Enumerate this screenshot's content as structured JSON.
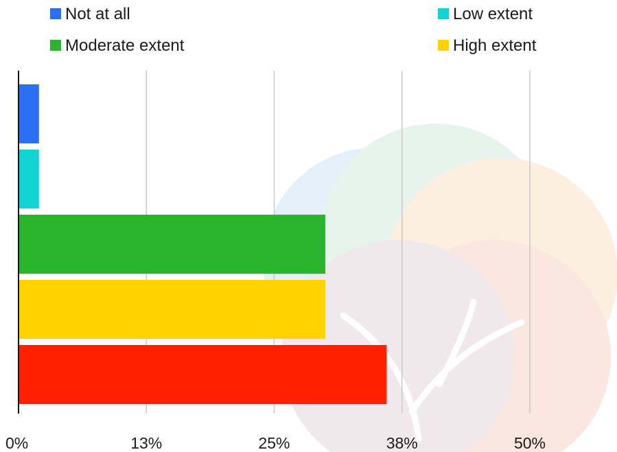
{
  "chart_data": {
    "type": "bar",
    "orientation": "horizontal",
    "title": "",
    "xlabel": "",
    "ylabel": "",
    "xlim": [
      0,
      50
    ],
    "x_tick_labels": [
      "0%",
      "13%",
      "25%",
      "38%",
      "50%"
    ],
    "grid": true,
    "legend_position": "top",
    "series": [
      {
        "name": "Not at all",
        "value": 2,
        "color": "#2b6ff5"
      },
      {
        "name": "Low extent",
        "value": 2,
        "color": "#12d2d2"
      },
      {
        "name": "Moderate extent",
        "value": 30,
        "color": "#2ab42e"
      },
      {
        "name": "High extent",
        "value": 30,
        "color": "#ffd200"
      },
      {
        "name": "",
        "value": 36,
        "color": "#ff2000"
      }
    ]
  },
  "watermark": {
    "icon": "tree-logo-icon",
    "colors": [
      "#cfe3f5",
      "#d4ebe0",
      "#fbe4c8",
      "#f6d6cc",
      "#e6d7dc"
    ]
  }
}
